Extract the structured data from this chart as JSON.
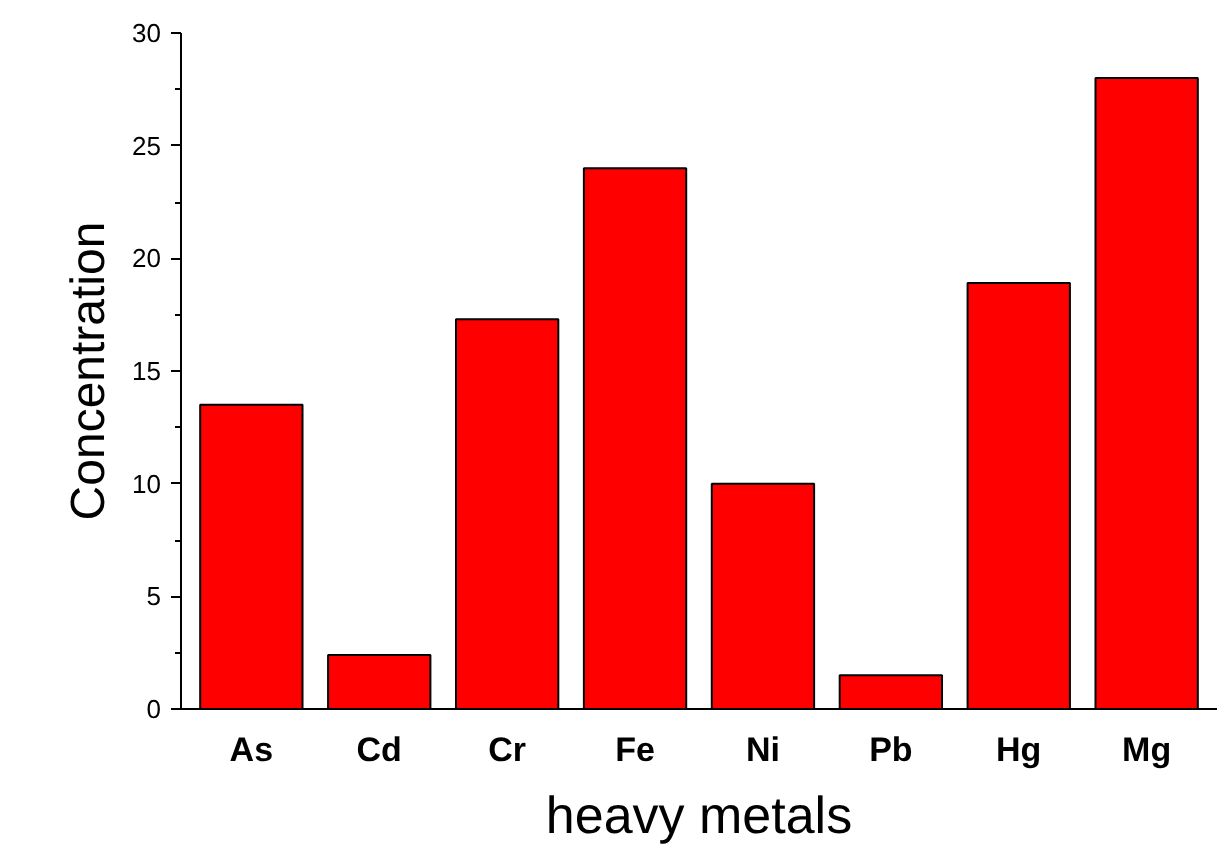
{
  "chart_data": {
    "type": "bar",
    "xlabel": "heavy metals",
    "ylabel": "Concentration",
    "categories": [
      "As",
      "Cd",
      "Cr",
      "Fe",
      "Ni",
      "Pb",
      "Hg",
      "Mg"
    ],
    "values": [
      13.5,
      2.4,
      17.3,
      24.0,
      10.0,
      1.5,
      18.9,
      28.0
    ],
    "color": "#ff0000",
    "ylim": [
      0,
      30
    ],
    "yticks": [
      0,
      5,
      10,
      15,
      20,
      25,
      30
    ],
    "grid": false
  }
}
